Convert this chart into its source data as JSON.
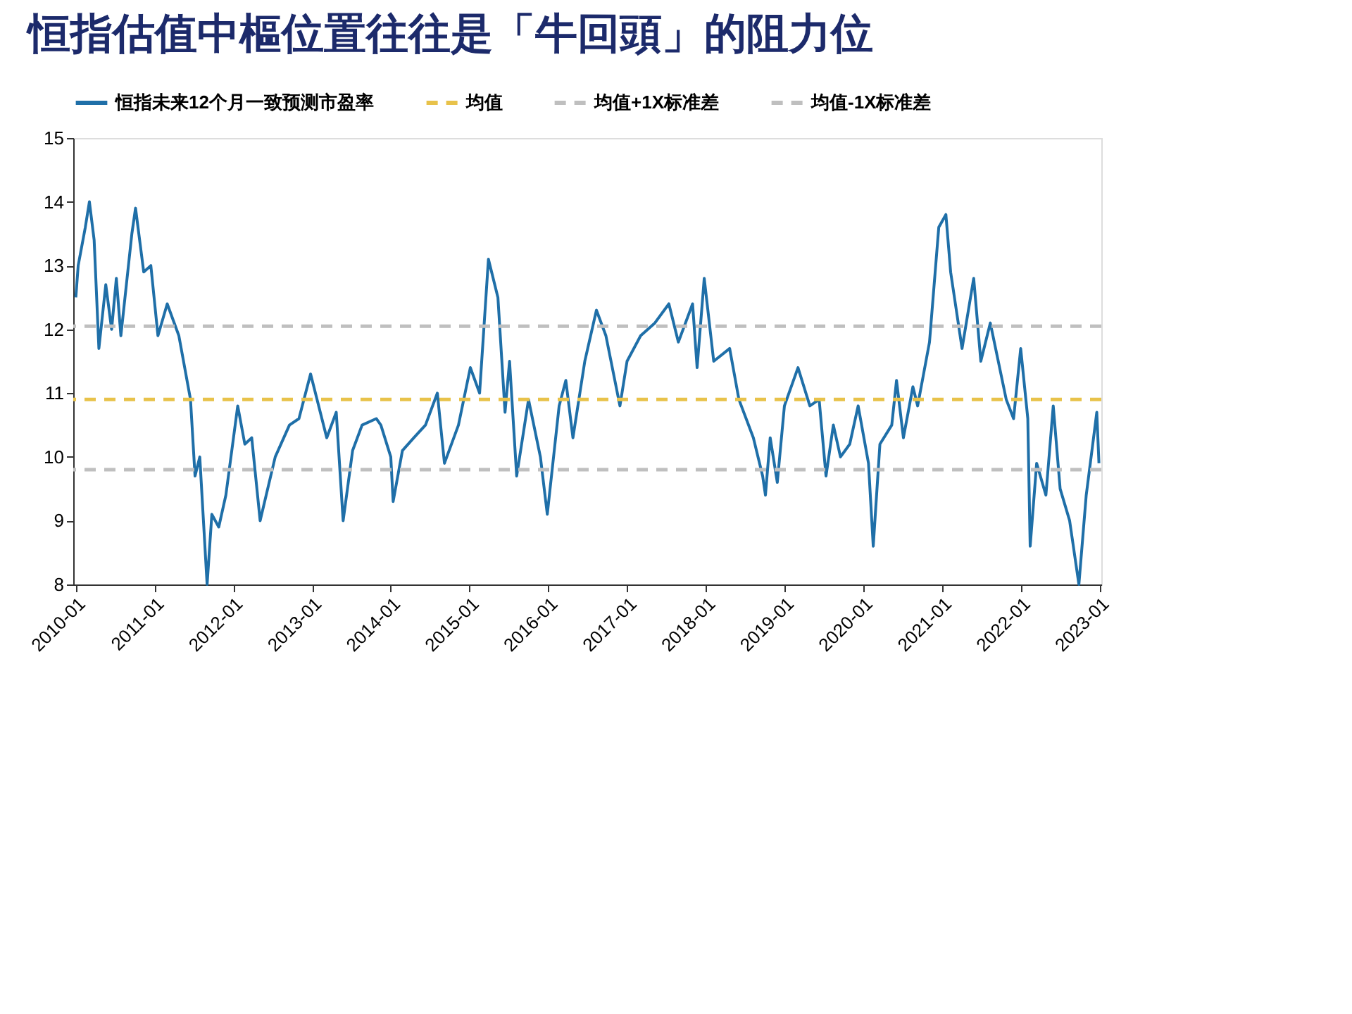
{
  "chart_data": {
    "type": "line",
    "title": "恒指估值中樞位置往往是「牛回頭」的阻力位",
    "x": [
      "2010-01-01",
      "2010-01-12",
      "2010-02-14",
      "2010-03-05",
      "2010-03-27",
      "2010-04-18",
      "2010-05-20",
      "2010-06-16",
      "2010-07-08",
      "2010-07-29",
      "2010-09-18",
      "2010-10-05",
      "2010-11-12",
      "2010-12-15",
      "2011-01-17",
      "2011-03-01",
      "2011-04-24",
      "2011-06-17",
      "2011-07-08",
      "2011-07-30",
      "2011-09-02",
      "2011-09-24",
      "2011-10-26",
      "2011-11-28",
      "2012-01-22",
      "2012-02-24",
      "2012-03-27",
      "2012-05-05",
      "2012-07-14",
      "2012-09-18",
      "2012-11-01",
      "2012-12-25",
      "2013-03-10",
      "2013-04-23",
      "2013-05-25",
      "2013-07-08",
      "2013-08-21",
      "2013-10-26",
      "2013-11-16",
      "2014-01-01",
      "2014-01-12",
      "2014-02-24",
      "2014-04-18",
      "2014-06-11",
      "2014-08-05",
      "2014-09-07",
      "2014-11-11",
      "2015-01-05",
      "2015-02-17",
      "2015-03-30",
      "2015-05-13",
      "2015-06-15",
      "2015-07-06",
      "2015-08-08",
      "2015-10-02",
      "2015-11-26",
      "2015-12-28",
      "2016-02-21",
      "2016-03-23",
      "2016-04-25",
      "2016-06-19",
      "2016-08-12",
      "2016-09-25",
      "2016-11-29",
      "2017-01-01",
      "2017-03-05",
      "2017-05-10",
      "2017-07-14",
      "2017-08-27",
      "2017-11-01",
      "2017-11-22",
      "2017-12-25",
      "2018-02-07",
      "2018-04-22",
      "2018-06-04",
      "2018-08-10",
      "2018-09-22",
      "2018-10-05",
      "2018-10-27",
      "2018-11-29",
      "2019-01-01",
      "2019-03-05",
      "2019-04-29",
      "2019-06-11",
      "2019-07-13",
      "2019-08-16",
      "2019-09-18",
      "2019-10-31",
      "2019-12-09",
      "2020-01-26",
      "2020-02-17",
      "2020-03-19",
      "2020-05-13",
      "2020-06-04",
      "2020-07-06",
      "2020-08-19",
      "2020-09-10",
      "2020-11-04",
      "2020-12-17",
      "2021-01-19",
      "2021-02-10",
      "2021-04-04",
      "2021-05-28",
      "2021-06-30",
      "2021-08-13",
      "2021-10-26",
      "2021-11-29",
      "2022-01-01",
      "2022-02-03",
      "2022-02-14",
      "2022-03-16",
      "2022-04-28",
      "2022-06-01",
      "2022-07-03",
      "2022-08-16",
      "2022-09-28",
      "2022-11-01",
      "2022-12-05",
      "2022-12-20",
      "2022-12-30"
    ],
    "series": [
      {
        "name": "恒指未来12个月一致预测市盈率",
        "color": "#1f6fa8",
        "values": [
          12.5,
          13.0,
          13.6,
          14.0,
          13.4,
          11.7,
          12.7,
          12.0,
          12.8,
          11.9,
          13.5,
          13.9,
          12.9,
          13.0,
          11.9,
          12.4,
          11.9,
          10.9,
          9.7,
          10.0,
          8.0,
          9.1,
          8.9,
          9.4,
          10.8,
          10.2,
          10.3,
          9.0,
          10.0,
          10.5,
          10.6,
          11.3,
          10.3,
          10.7,
          9.0,
          10.1,
          10.5,
          10.6,
          10.5,
          10.0,
          9.3,
          10.1,
          10.3,
          10.5,
          11.0,
          9.9,
          10.5,
          11.4,
          11.0,
          13.1,
          12.5,
          10.7,
          11.5,
          9.7,
          10.9,
          10.0,
          9.1,
          10.8,
          11.2,
          10.3,
          11.5,
          12.3,
          11.9,
          10.8,
          11.5,
          11.9,
          12.1,
          12.4,
          11.8,
          12.4,
          11.4,
          12.8,
          11.5,
          11.7,
          10.9,
          10.3,
          9.7,
          9.4,
          10.3,
          9.6,
          10.8,
          11.4,
          10.8,
          10.9,
          9.7,
          10.5,
          10.0,
          10.2,
          10.8,
          9.9,
          8.6,
          10.2,
          10.5,
          11.2,
          10.3,
          11.1,
          10.8,
          11.8,
          13.6,
          13.8,
          12.9,
          11.7,
          12.8,
          11.5,
          12.1,
          10.9,
          10.6,
          11.7,
          10.6,
          8.6,
          9.9,
          9.4,
          10.8,
          9.5,
          9.0,
          8.0,
          9.4,
          10.3,
          10.7,
          9.9
        ]
      }
    ],
    "xlim": [
      "2009-12-20",
      "2023-01-10"
    ],
    "xticks": [
      "2010-01",
      "2011-01",
      "2012-01",
      "2013-01",
      "2014-01",
      "2015-01",
      "2016-01",
      "2017-01",
      "2018-01",
      "2019-01",
      "2020-01",
      "2021-01",
      "2022-01",
      "2023-01"
    ],
    "ylim": [
      8,
      15
    ],
    "yticks": [
      8,
      9,
      10,
      11,
      12,
      13,
      14,
      15
    ],
    "ref_lines": [
      {
        "axis": "y",
        "value": 10.9,
        "label": "均值",
        "color": "#e8c24a",
        "line_style": "dashed"
      },
      {
        "axis": "y",
        "value": 12.05,
        "label": "均值+1X标准差",
        "color": "#bfbfbf",
        "line_style": "dashed"
      },
      {
        "axis": "y",
        "value": 9.8,
        "label": "均值-1X标准差",
        "color": "#bfbfbf",
        "line_style": "dashed"
      }
    ],
    "grid": false,
    "legend": "top",
    "marker": "none",
    "line_style": "solid"
  }
}
